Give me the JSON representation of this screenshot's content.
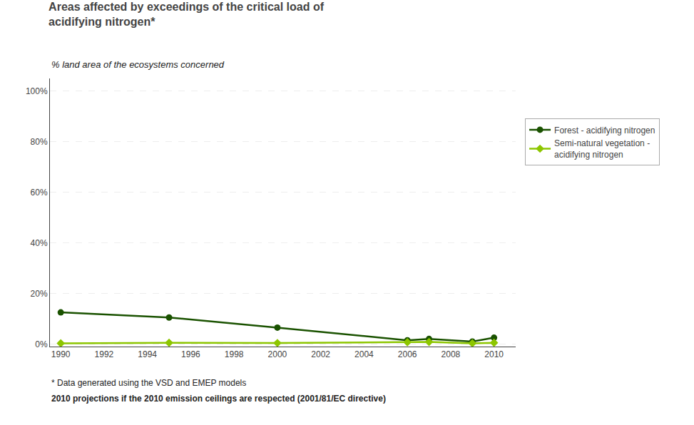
{
  "chart_data": {
    "type": "line",
    "title": "Areas affected by exceedings of the critical load of\nacidifying nitrogen*",
    "ylabel": "% land area of the ecosystems concerned",
    "annotations": [
      "* Data generated using the VSD and EMEP models",
      "2010 projections if the 2010 emission ceilings are respected (2001/81/EC directive)"
    ],
    "x": [
      1990,
      1995,
      2000,
      2006,
      2007,
      2009,
      2010
    ],
    "series": [
      {
        "name": "Forest - acidifying nitrogen",
        "color": "#1a5200",
        "marker": "circle",
        "values": [
          12.5,
          10.5,
          6.5,
          1.5,
          2.0,
          1.0,
          2.5
        ]
      },
      {
        "name": "Semi-natural vegetation -\nacidifying nitrogen",
        "color": "#8dc600",
        "marker": "diamond",
        "values": [
          0.3,
          0.5,
          0.4,
          0.7,
          0.8,
          0.3,
          0.5
        ]
      }
    ],
    "xlim": [
      1989.5,
      2011.0
    ],
    "xticks": [
      1990,
      1992,
      1994,
      1996,
      1998,
      2000,
      2002,
      2004,
      2006,
      2008,
      2010
    ],
    "ylim": [
      -1,
      105
    ],
    "yticks": [
      {
        "value": 0,
        "label": "0%"
      },
      {
        "value": 20,
        "label": "20%"
      },
      {
        "value": 40,
        "label": "40%"
      },
      {
        "value": 60,
        "label": "60%"
      },
      {
        "value": 80,
        "label": "80%"
      },
      {
        "value": 100,
        "label": "100%"
      }
    ],
    "grid": "y",
    "legend": "right"
  }
}
